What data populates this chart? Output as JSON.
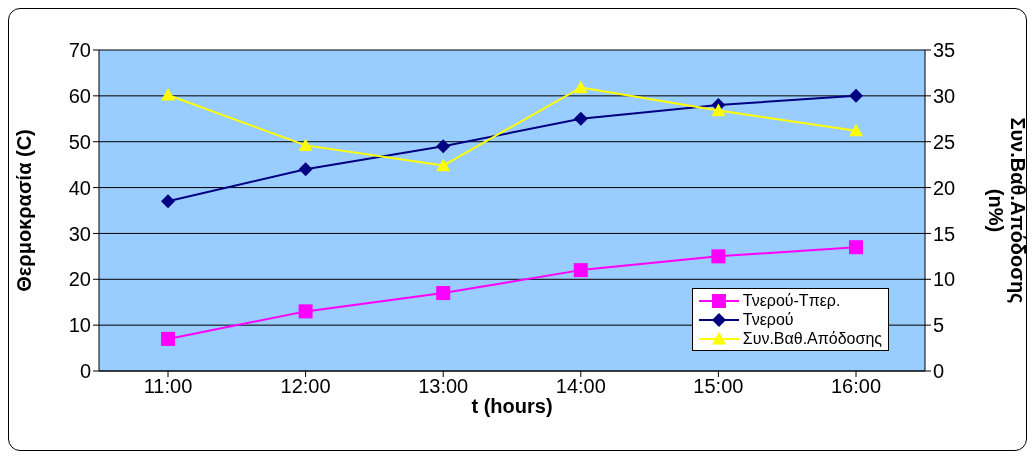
{
  "chart_data": {
    "type": "line",
    "xlabel": "t (hours)",
    "ylabel": "Θερμοκρασία (C)",
    "y2label": "Συν.Βαθ.Απόδοσης\n(n%)",
    "categories": [
      "11:00",
      "12:00",
      "13:00",
      "14:00",
      "15:00",
      "16:00"
    ],
    "series": [
      {
        "name": "Τνερού-Τπερ.",
        "color": "#ff00ff",
        "marker": "square",
        "values": [
          7,
          13,
          17,
          22,
          25,
          27
        ]
      },
      {
        "name": "Τνερού",
        "color": "#000080",
        "marker": "diamond",
        "values": [
          37,
          44,
          49,
          55,
          58,
          60
        ]
      },
      {
        "name": "Συν.Βαθ.Απόδοσης",
        "color": "#ffff00",
        "marker": "triangle",
        "axis": "y2",
        "values": [
          30.1,
          24.6,
          22.4,
          30.9,
          28.4,
          26.2
        ]
      }
    ],
    "ylim": [
      0,
      70
    ],
    "yticks": [
      0,
      10,
      20,
      30,
      40,
      50,
      60,
      70
    ],
    "y2lim": [
      0,
      35
    ],
    "y2ticks": [
      0,
      5,
      10,
      15,
      20,
      25,
      30,
      35
    ],
    "grid": "y",
    "legend": "bottom right"
  }
}
